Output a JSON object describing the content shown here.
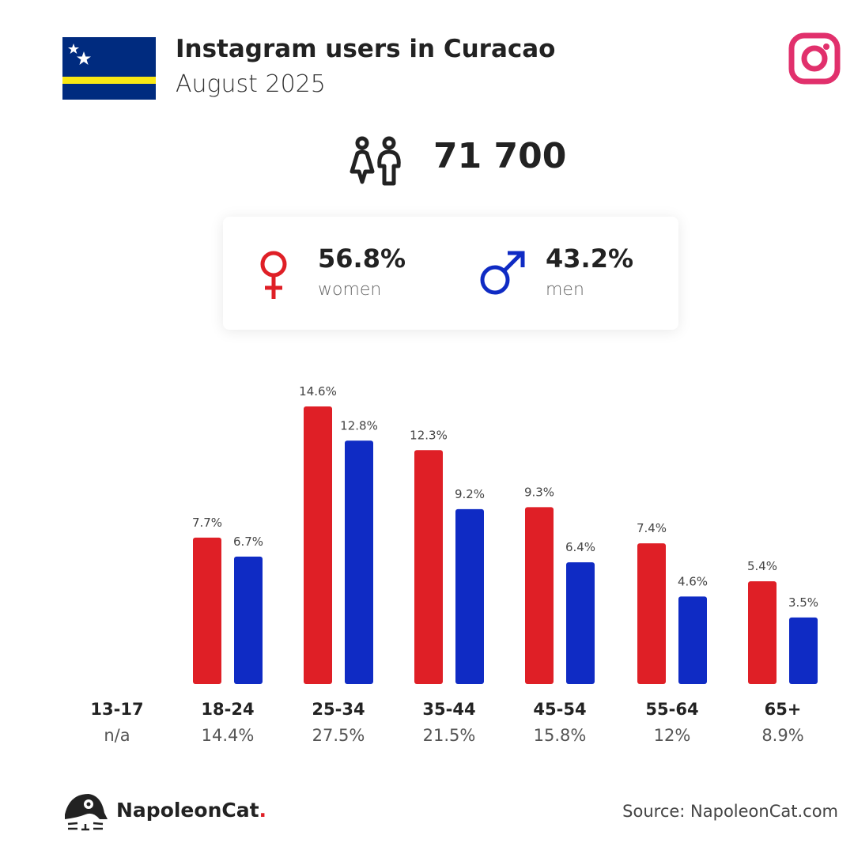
{
  "header": {
    "title": "Instagram users in Curacao",
    "subtitle": "August 2025"
  },
  "total_users": "71 700",
  "gender": {
    "women": {
      "percent": "56.8%",
      "label": "women",
      "color": "#df1f26"
    },
    "men": {
      "percent": "43.2%",
      "label": "men",
      "color": "#0f2bc4"
    }
  },
  "chart_data": {
    "type": "bar",
    "categories": [
      "13-17",
      "18-24",
      "25-34",
      "35-44",
      "45-54",
      "55-64",
      "65+"
    ],
    "category_shares": [
      "n/a",
      "14.4%",
      "27.5%",
      "21.5%",
      "15.8%",
      "12%",
      "8.9%"
    ],
    "series": [
      {
        "name": "women",
        "color": "#df1f26",
        "values": [
          null,
          7.7,
          14.6,
          12.3,
          9.3,
          7.4,
          5.4
        ],
        "labels": [
          "",
          "7.7%",
          "14.6%",
          "12.3%",
          "9.3%",
          "7.4%",
          "5.4%"
        ]
      },
      {
        "name": "men",
        "color": "#0f2bc4",
        "values": [
          null,
          6.7,
          12.8,
          9.2,
          6.4,
          4.6,
          3.5
        ],
        "labels": [
          "",
          "6.7%",
          "12.8%",
          "9.2%",
          "6.4%",
          "4.6%",
          "3.5%"
        ]
      }
    ],
    "ylim": [
      0,
      16
    ],
    "grid": false
  },
  "footer": {
    "brand": "NapoleonCat",
    "brand_dot": ".",
    "source": "Source: NapoleonCat.com"
  },
  "icons": {
    "flag": "curacao-flag",
    "instagram": "instagram-icon",
    "people": "people-icon"
  }
}
